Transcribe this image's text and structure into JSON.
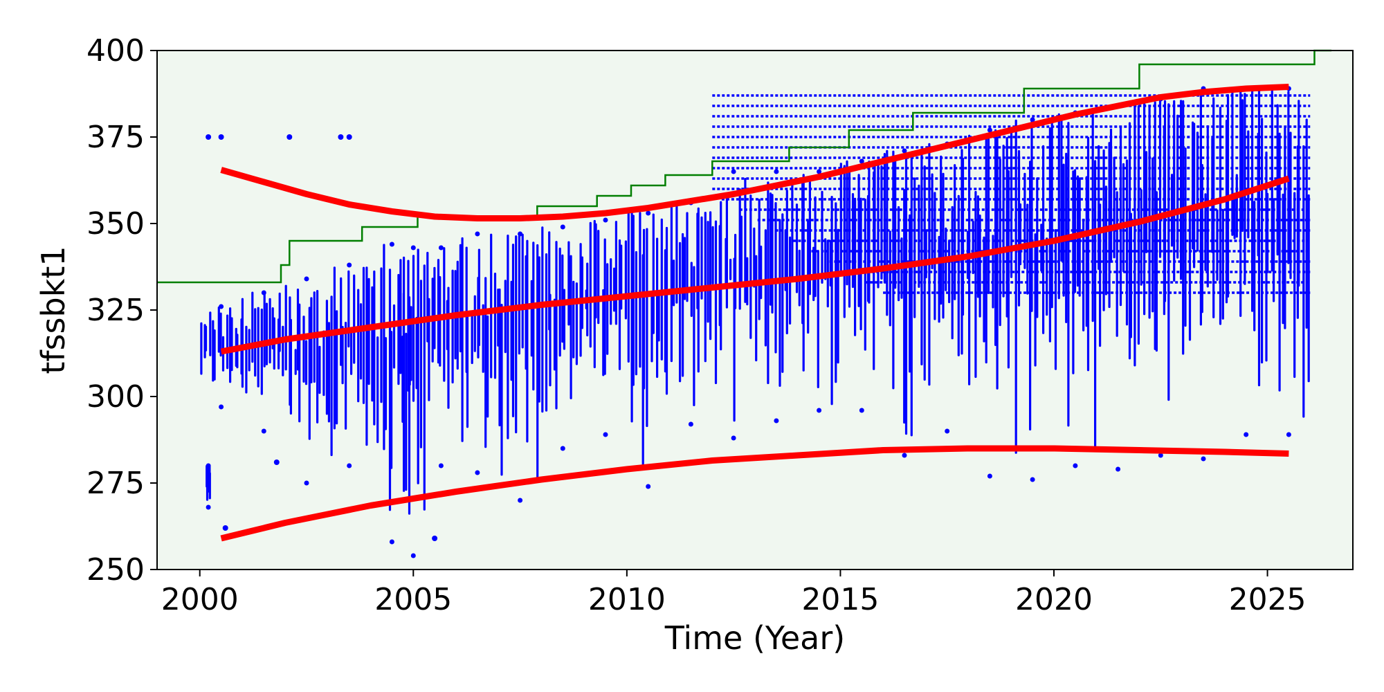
{
  "chart_data": {
    "type": "scatter",
    "title": "",
    "xlabel": "Time (Year)",
    "ylabel": "tfssbkt1",
    "xlim": [
      1999,
      2027
    ],
    "ylim": [
      250,
      400
    ],
    "xticks": [
      2000,
      2005,
      2010,
      2015,
      2020,
      2025
    ],
    "yticks": [
      250,
      275,
      300,
      325,
      350,
      375,
      400
    ],
    "grid": false,
    "legend": "none",
    "colors": {
      "plot_background": "#f0f7f0",
      "scatter": "#0000ff",
      "fit_lines": "#ff0000",
      "step_line": "#007f00"
    },
    "step_series": {
      "name": "",
      "x": [
        1999,
        2001.9,
        2002.1,
        2003.8,
        2005.1,
        2006.6,
        2007.9,
        2009.3,
        2010.1,
        2010.9,
        2012.0,
        2013.8,
        2015.2,
        2016.7,
        2019.3,
        2022.0,
        2026.1
      ],
      "y": [
        333,
        338,
        345,
        349,
        352,
        352,
        355,
        358,
        361,
        364,
        368,
        372,
        377,
        382,
        389,
        396,
        400
      ]
    },
    "fit_series": [
      {
        "name": "",
        "x": [
          2000.5,
          2001.5,
          2002.5,
          2003.5,
          2004.5,
          2005.5,
          2006.5,
          2007.5,
          2008.5,
          2009.5,
          2010.5,
          2011.5,
          2012.5,
          2013.5,
          2014.5,
          2015.5,
          2016.5,
          2017.5,
          2018.5,
          2019.5,
          2020.5,
          2021.5,
          2022.5,
          2023.5,
          2024.5,
          2025.5
        ],
        "y": [
          365.5,
          362,
          358.5,
          355.5,
          353.5,
          352,
          351.5,
          351.5,
          352,
          353,
          354.5,
          356.5,
          358.5,
          361,
          363.5,
          366.5,
          369.5,
          372.5,
          375.5,
          378.5,
          381.5,
          384,
          386.5,
          388,
          389,
          389.5
        ]
      },
      {
        "name": "",
        "x": [
          2000.5,
          2002,
          2004,
          2006,
          2008,
          2010,
          2012,
          2014,
          2016,
          2018,
          2020,
          2022,
          2024,
          2025.5
        ],
        "y": [
          313,
          316.5,
          320,
          323.5,
          326.5,
          329,
          331.5,
          334,
          337,
          340.5,
          345,
          350.5,
          357,
          363
        ]
      },
      {
        "name": "",
        "x": [
          2000.5,
          2002,
          2004,
          2006,
          2008,
          2010,
          2012,
          2014,
          2016,
          2018,
          2020,
          2022,
          2024,
          2025.5
        ],
        "y": [
          259,
          263.5,
          268.5,
          272.5,
          276,
          279,
          281.5,
          283,
          284.5,
          285,
          285,
          284.5,
          284,
          283.5
        ]
      }
    ],
    "scatter_series": {
      "name": "",
      "outliers": [
        {
          "x": 2000.2,
          "y": 375
        },
        {
          "x": 2000.5,
          "y": 375
        },
        {
          "x": 2002.1,
          "y": 375
        },
        {
          "x": 2003.3,
          "y": 375
        },
        {
          "x": 2003.5,
          "y": 375
        },
        {
          "x": 2000.6,
          "y": 262
        },
        {
          "x": 2001.8,
          "y": 281
        },
        {
          "x": 2005.5,
          "y": 259
        }
      ],
      "ranges": [
        {
          "x0": 2000,
          "x1": 2001,
          "ymin": 297,
          "ymax": 326
        },
        {
          "x0": 2000.15,
          "x1": 2000.25,
          "ymin": 268,
          "ymax": 280
        },
        {
          "x0": 2001,
          "x1": 2002,
          "ymin": 290,
          "ymax": 330
        },
        {
          "x0": 2002,
          "x1": 2003,
          "ymin": 275,
          "ymax": 334
        },
        {
          "x0": 2003,
          "x1": 2004,
          "ymin": 280,
          "ymax": 338
        },
        {
          "x0": 2004,
          "x1": 2005,
          "ymin": 258,
          "ymax": 344
        },
        {
          "x0": 2004.7,
          "x1": 2005.3,
          "ymin": 254,
          "ymax": 343
        },
        {
          "x0": 2005.3,
          "x1": 2006,
          "ymin": 280,
          "ymax": 343
        },
        {
          "x0": 2006,
          "x1": 2007,
          "ymin": 278,
          "ymax": 347
        },
        {
          "x0": 2007,
          "x1": 2008,
          "ymin": 270,
          "ymax": 347
        },
        {
          "x0": 2008,
          "x1": 2009,
          "ymin": 285,
          "ymax": 349
        },
        {
          "x0": 2009,
          "x1": 2010,
          "ymin": 289,
          "ymax": 351
        },
        {
          "x0": 2010,
          "x1": 2011,
          "ymin": 274,
          "ymax": 353
        },
        {
          "x0": 2011,
          "x1": 2012,
          "ymin": 292,
          "ymax": 356
        },
        {
          "x0": 2012,
          "x1": 2013,
          "ymin": 288,
          "ymax": 365
        },
        {
          "x0": 2013,
          "x1": 2014,
          "ymin": 293,
          "ymax": 365
        },
        {
          "x0": 2014,
          "x1": 2015,
          "ymin": 296,
          "ymax": 365
        },
        {
          "x0": 2015,
          "x1": 2016,
          "ymin": 296,
          "ymax": 368
        },
        {
          "x0": 2016,
          "x1": 2017,
          "ymin": 283,
          "ymax": 371
        },
        {
          "x0": 2017,
          "x1": 2018,
          "ymin": 290,
          "ymax": 373
        },
        {
          "x0": 2018,
          "x1": 2019,
          "ymin": 277,
          "ymax": 377
        },
        {
          "x0": 2019,
          "x1": 2020,
          "ymin": 276,
          "ymax": 380
        },
        {
          "x0": 2020,
          "x1": 2021,
          "ymin": 280,
          "ymax": 382
        },
        {
          "x0": 2021,
          "x1": 2022,
          "ymin": 279,
          "ymax": 384
        },
        {
          "x0": 2022,
          "x1": 2023,
          "ymin": 283,
          "ymax": 386
        },
        {
          "x0": 2023,
          "x1": 2024,
          "ymin": 282,
          "ymax": 389
        },
        {
          "x0": 2024,
          "x1": 2025,
          "ymin": 289,
          "ymax": 389
        },
        {
          "x0": 2025,
          "x1": 2026,
          "ymin": 289,
          "ymax": 389
        }
      ]
    }
  }
}
